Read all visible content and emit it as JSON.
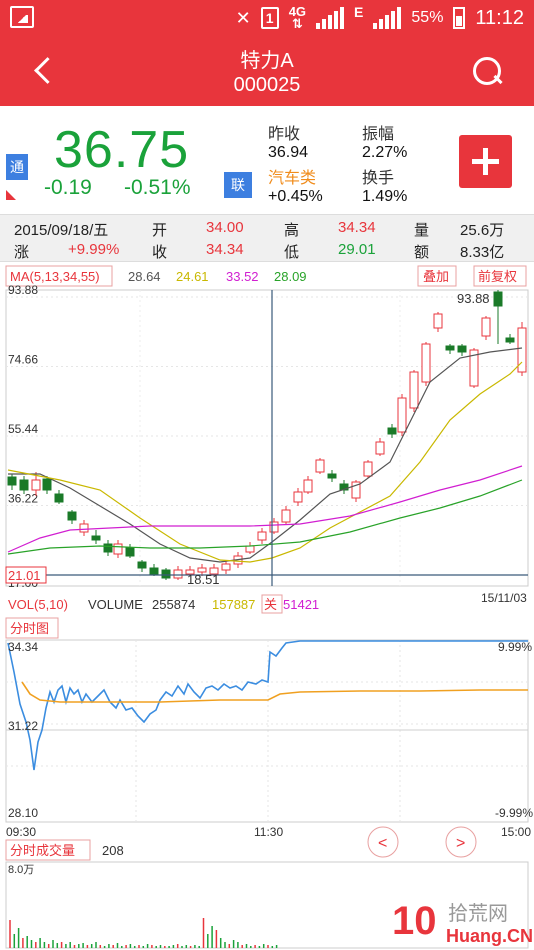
{
  "statusbar": {
    "net": "4G",
    "sim": "1",
    "e_label": "E",
    "battery": "55%",
    "time": "11:12"
  },
  "header": {
    "name": "特力A",
    "code": "000025"
  },
  "quote": {
    "badge_tong": "通",
    "badge_lian": "联",
    "price": "36.75",
    "change": "-0.19",
    "change_pct": "-0.51%",
    "prev_close_label": "昨收",
    "prev_close": "36.94",
    "amplitude_label": "振幅",
    "amplitude": "2.27%",
    "sector": "汽车类",
    "sector_change": "+0.45%",
    "turnover_label": "换手",
    "turnover": "1.49%"
  },
  "info": {
    "date": "2015/09/18/五",
    "open_label": "开",
    "open": "34.00",
    "high_label": "高",
    "high": "34.34",
    "vol_label": "量",
    "vol": "25.6万",
    "chg_label": "涨",
    "chg": "+9.99%",
    "close_label": "收",
    "close": "34.34",
    "low_label": "低",
    "low": "29.01",
    "amt_label": "额",
    "amt": "8.33亿"
  },
  "kline": {
    "ma_label": "MA(5,13,34,55)",
    "ma5": "28.64",
    "ma13": "24.61",
    "ma34": "33.52",
    "ma55": "28.09",
    "overlay_btn": "叠加",
    "adjust_btn": "前复权",
    "y_ticks": [
      "93.88",
      "74.66",
      "55.44",
      "36.22",
      "17.00"
    ],
    "hi_label": "93.88",
    "lo_label": "18.51",
    "cursor_price": "21.01",
    "end_date": "15/11/03",
    "colors": {
      "ma5": "#555555",
      "ma13": "#c9b800",
      "ma34": "#d11fd1",
      "ma55": "#29a329",
      "up": "#e8353c",
      "down": "#1a7a28"
    }
  },
  "vol": {
    "label": "VOL(5,10)",
    "volume_label": "VOLUME",
    "volume": "255874",
    "v1": "157887",
    "close_btn": "关",
    "v2": "51421"
  },
  "intraday": {
    "tab": "分时图",
    "y_top": "34.34",
    "y_mid": "31.22",
    "y_bot": "28.10",
    "pct_top": "9.99%",
    "pct_bot": "-9.99%",
    "t_start": "09:30",
    "t_mid": "11:30",
    "t_end": "15:00",
    "prev_btn": "<",
    "next_btn": ">"
  },
  "volume_panel": {
    "tab": "分时成交量",
    "value": "208",
    "scale": "8.0万"
  },
  "watermark": {
    "text": "拾荒网",
    "sub": "Huang.CN",
    "num": "10"
  }
}
